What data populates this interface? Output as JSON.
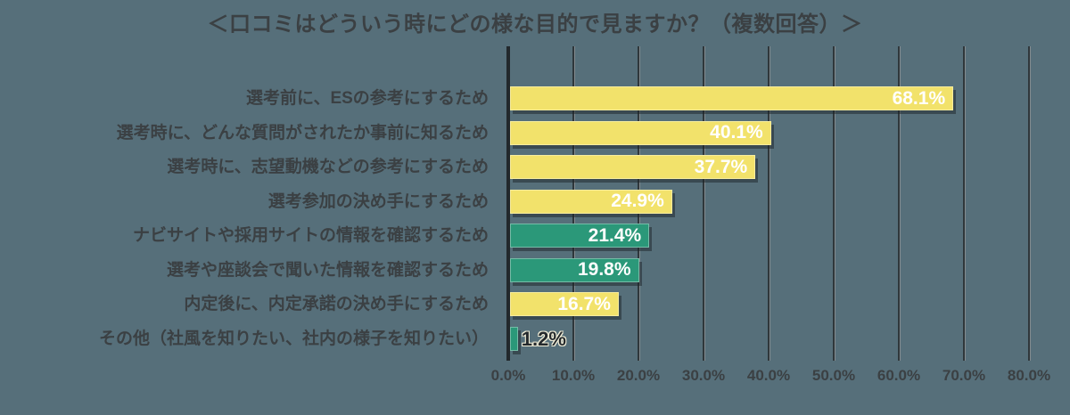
{
  "title": "＜口コミはどういう時にどの様な目的で見ますか？（複数回答）＞",
  "chart_data": {
    "type": "bar",
    "orientation": "horizontal",
    "title": "＜口コミはどういう時にどの様な目的で見ますか？（複数回答）＞",
    "categories": [
      "選考前に、ESの参考にするため",
      "選考時に、どんな質問がされたか事前に知るため",
      "選考時に、志望動機などの参考にするため",
      "選考参加の決め手にするため",
      "ナビサイトや採用サイトの情報を確認するため",
      "選考や座談会で聞いた情報を確認するため",
      "内定後に、内定承諾の決め手にするため",
      "その他（社風を知りたい、社内の様子を知りたい）"
    ],
    "values": [
      68.1,
      40.1,
      37.7,
      24.9,
      21.4,
      19.8,
      16.7,
      1.2
    ],
    "value_labels": [
      "68.1%",
      "40.1%",
      "37.7%",
      "24.9%",
      "21.4%",
      "19.8%",
      "16.7%",
      "1.2%"
    ],
    "bar_color_keys": [
      "yellow",
      "yellow",
      "yellow",
      "yellow",
      "green",
      "green",
      "yellow",
      "green"
    ],
    "x_ticks": [
      "0.0%",
      "10.0%",
      "20.0%",
      "30.0%",
      "40.0%",
      "50.0%",
      "60.0%",
      "70.0%",
      "80.0%"
    ],
    "xlim": [
      0,
      80
    ],
    "grid": true,
    "legend": false,
    "value_label_position": "inside-right, outside for smallest bar"
  },
  "colors": {
    "background": "#566F7A",
    "yellow": "#F2E26B",
    "green": "#2B9879",
    "text": "#3B4043",
    "bar_value_text": "#FFFFFF",
    "outside_value_text": "#24292D",
    "outside_value_outline": "#F2EFD9",
    "gridline_dark": "#2F373B",
    "gridline_light": "#838B8F",
    "axis_line": "#22282C",
    "bar_shadow": "rgba(27,35,39,0.5)"
  }
}
